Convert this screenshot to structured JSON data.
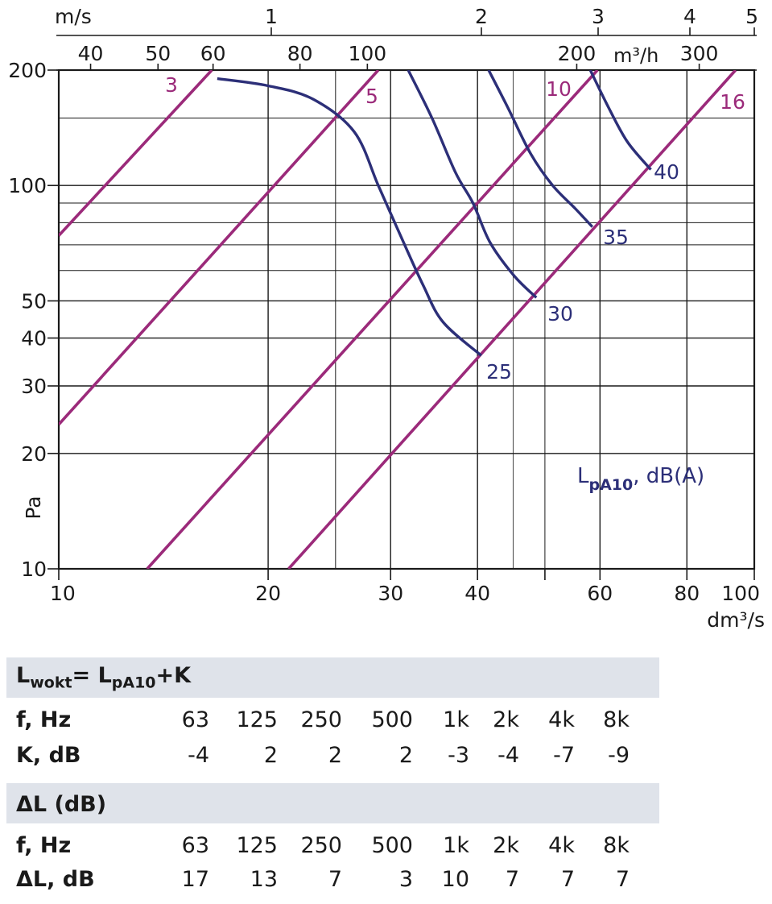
{
  "colors": {
    "duct": "#9b2a7a",
    "sound": "#2c2f78",
    "grid": "#1a1a1a",
    "band": "#dfe3ea"
  },
  "chart_data": {
    "type": "line",
    "x_scale": "log",
    "y_scale": "log",
    "xlim": [
      10,
      100
    ],
    "ylim": [
      10,
      200
    ],
    "xlabel": "dm³/s",
    "ylabel": "Pa",
    "x_ticks": [
      10,
      20,
      30,
      40,
      60,
      80,
      100
    ],
    "y_ticks": [
      10,
      20,
      30,
      40,
      50,
      100,
      200
    ],
    "top_axis_1": {
      "label": "m/s",
      "ticks": [
        "1",
        "2",
        "3",
        "4",
        "5"
      ]
    },
    "top_axis_2": {
      "label": "m³/h",
      "ticks": [
        "40",
        "50",
        "60",
        "80",
        "100",
        "200",
        "300"
      ]
    },
    "annotation": "L_pA10, dB(A)",
    "duct_lines": [
      {
        "name": "3",
        "points": [
          [
            10,
            74
          ],
          [
            16.6,
            200
          ]
        ]
      },
      {
        "name": "5",
        "points": [
          [
            10,
            23.8
          ],
          [
            28.8,
            200
          ]
        ]
      },
      {
        "name": "10",
        "points": [
          [
            13.4,
            10
          ],
          [
            59.5,
            200
          ]
        ]
      },
      {
        "name": "16",
        "points": [
          [
            21.4,
            10
          ],
          [
            94.0,
            200
          ]
        ]
      }
    ],
    "sound_curves": [
      {
        "name": "25",
        "points": [
          [
            16.9,
            190
          ],
          [
            20,
            182
          ],
          [
            23.2,
            168
          ],
          [
            26.6,
            138
          ],
          [
            28.8,
            100
          ],
          [
            30.9,
            75
          ],
          [
            33.4,
            55
          ],
          [
            35.7,
            44
          ],
          [
            40.5,
            36
          ]
        ]
      },
      {
        "name": "30",
        "points": [
          [
            31.8,
            200
          ],
          [
            34.4,
            150
          ],
          [
            37.2,
            108
          ],
          [
            39.4,
            90
          ],
          [
            41.7,
            71
          ],
          [
            45.2,
            58
          ],
          [
            48.6,
            51
          ]
        ]
      },
      {
        "name": "35",
        "points": [
          [
            41.5,
            200
          ],
          [
            44.2,
            160
          ],
          [
            47.7,
            121
          ],
          [
            51.3,
            100
          ],
          [
            55.3,
            87
          ],
          [
            58.5,
            78
          ]
        ]
      },
      {
        "name": "40",
        "points": [
          [
            58.1,
            200
          ],
          [
            61.7,
            160
          ],
          [
            65.7,
            130
          ],
          [
            71.0,
            110
          ]
        ]
      }
    ]
  },
  "table1": {
    "title_main": "L",
    "title_sub1": "wokt",
    "title_mid": "= L",
    "title_sub2": "pA10",
    "title_end": "+K",
    "freq_label": "f, Hz",
    "value_label": "K, dB",
    "frequencies": [
      "63",
      "125",
      "250",
      "500",
      "1k",
      "2k",
      "4k",
      "8k"
    ],
    "values": [
      "-4",
      "2",
      "2",
      "2",
      "-3",
      "-4",
      "-7",
      "-9"
    ]
  },
  "table2": {
    "title": "ΔL (dB)",
    "freq_label": "f, Hz",
    "value_label": "ΔL, dB",
    "frequencies": [
      "63",
      "125",
      "250",
      "500",
      "1k",
      "2k",
      "4k",
      "8k"
    ],
    "values": [
      "17",
      "13",
      "7",
      "3",
      "10",
      "7",
      "7",
      "7"
    ]
  }
}
